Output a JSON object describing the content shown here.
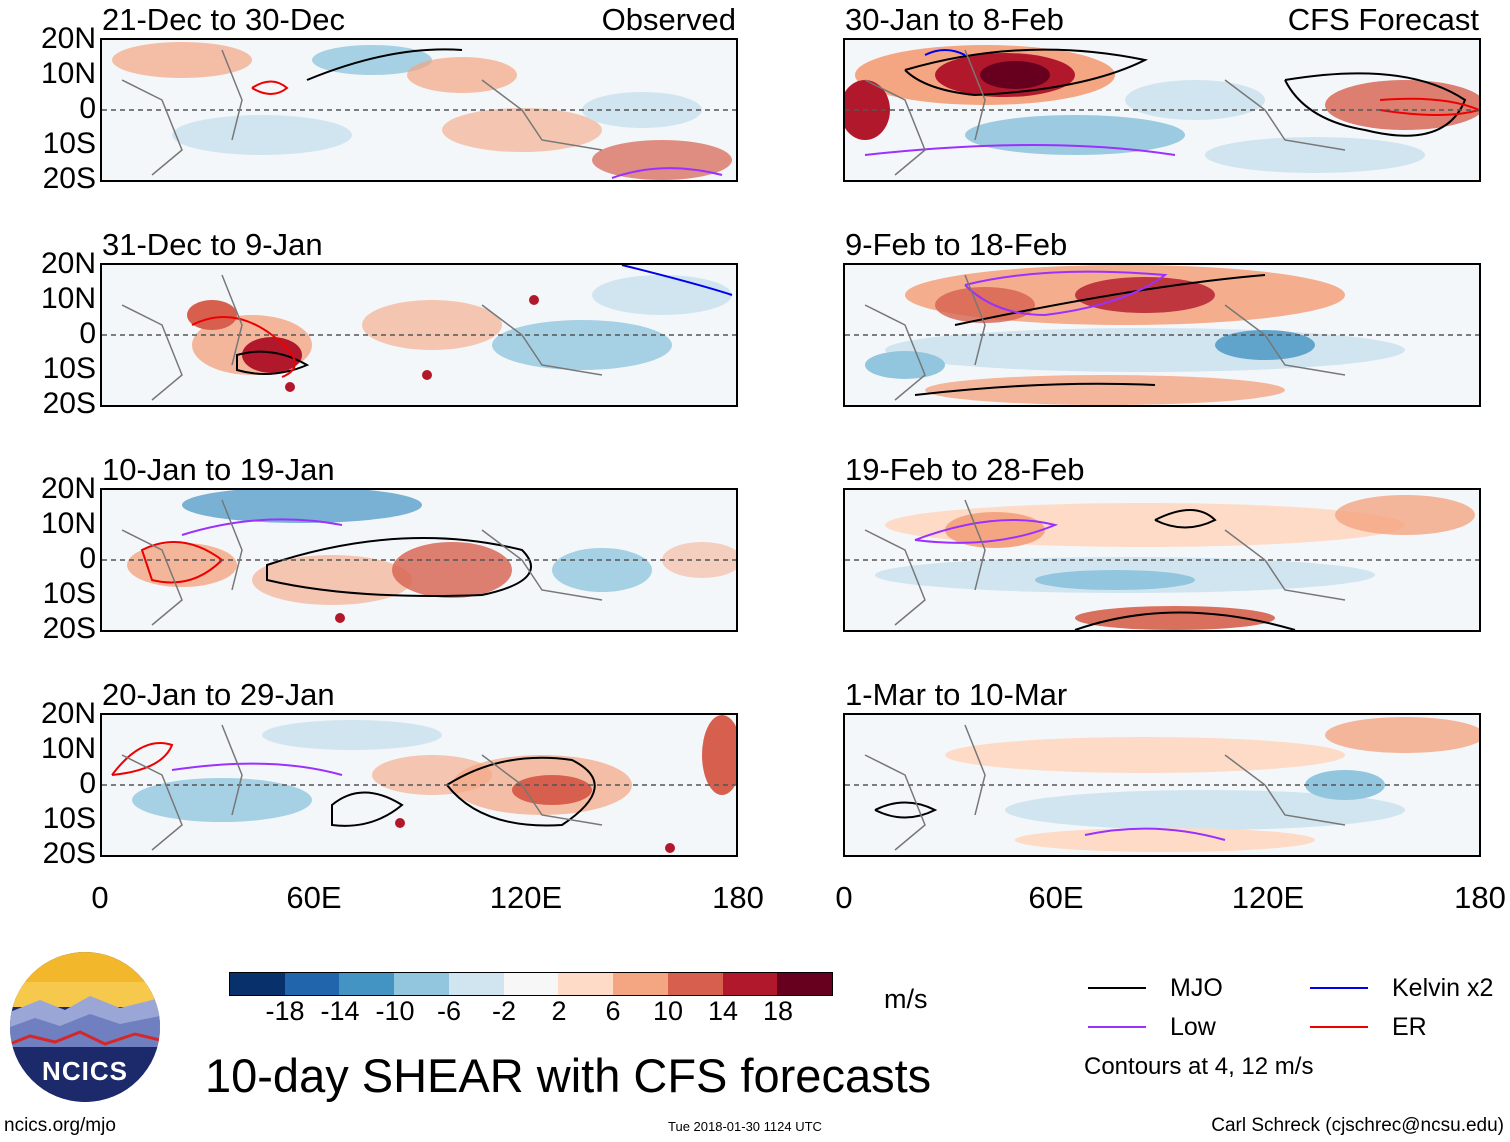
{
  "figure": {
    "title": "10-day SHEAR with CFS forecasts",
    "units": "m/s",
    "observed_tag": "Observed",
    "forecast_tag": "CFS Forecast",
    "footer_left": "ncics.org/mjo",
    "footer_center": "Tue 2018-01-30 1124 UTC",
    "footer_right": "Carl Schreck (cjschrec@ncsu.edu)",
    "logo_text": "NCICS"
  },
  "panels": {
    "obs": [
      {
        "title": "21-Dec to 30-Dec"
      },
      {
        "title": "31-Dec to 9-Jan"
      },
      {
        "title": "10-Jan to 19-Jan"
      },
      {
        "title": "20-Jan to 29-Jan"
      }
    ],
    "fcst": [
      {
        "title": "30-Jan to 8-Feb"
      },
      {
        "title": "9-Feb to 18-Feb"
      },
      {
        "title": "19-Feb to 28-Feb"
      },
      {
        "title": "1-Mar to 10-Mar"
      }
    ]
  },
  "axes": {
    "lat_labels": [
      "20N",
      "10N",
      "0",
      "10S",
      "20S"
    ],
    "lon_labels": [
      "0",
      "60E",
      "120E",
      "180"
    ]
  },
  "colorbar": {
    "ticks": [
      "-18",
      "-14",
      "-10",
      "-6",
      "-2",
      "2",
      "6",
      "10",
      "14",
      "18"
    ],
    "colors": [
      "#08306b",
      "#2166ac",
      "#4393c3",
      "#92c5de",
      "#d1e5f0",
      "#f7f7f7",
      "#fddbc7",
      "#f4a582",
      "#d6604d",
      "#b2182b",
      "#67001f"
    ]
  },
  "legend": {
    "mjo": "MJO",
    "low": "Low",
    "kelvin": "Kelvin x2",
    "er": "ER",
    "note": "Contours at 4, 12 m/s",
    "colors": {
      "mjo": "#000000",
      "low": "#9b30ff",
      "kelvin": "#0000ee",
      "er": "#ee0000"
    }
  }
}
